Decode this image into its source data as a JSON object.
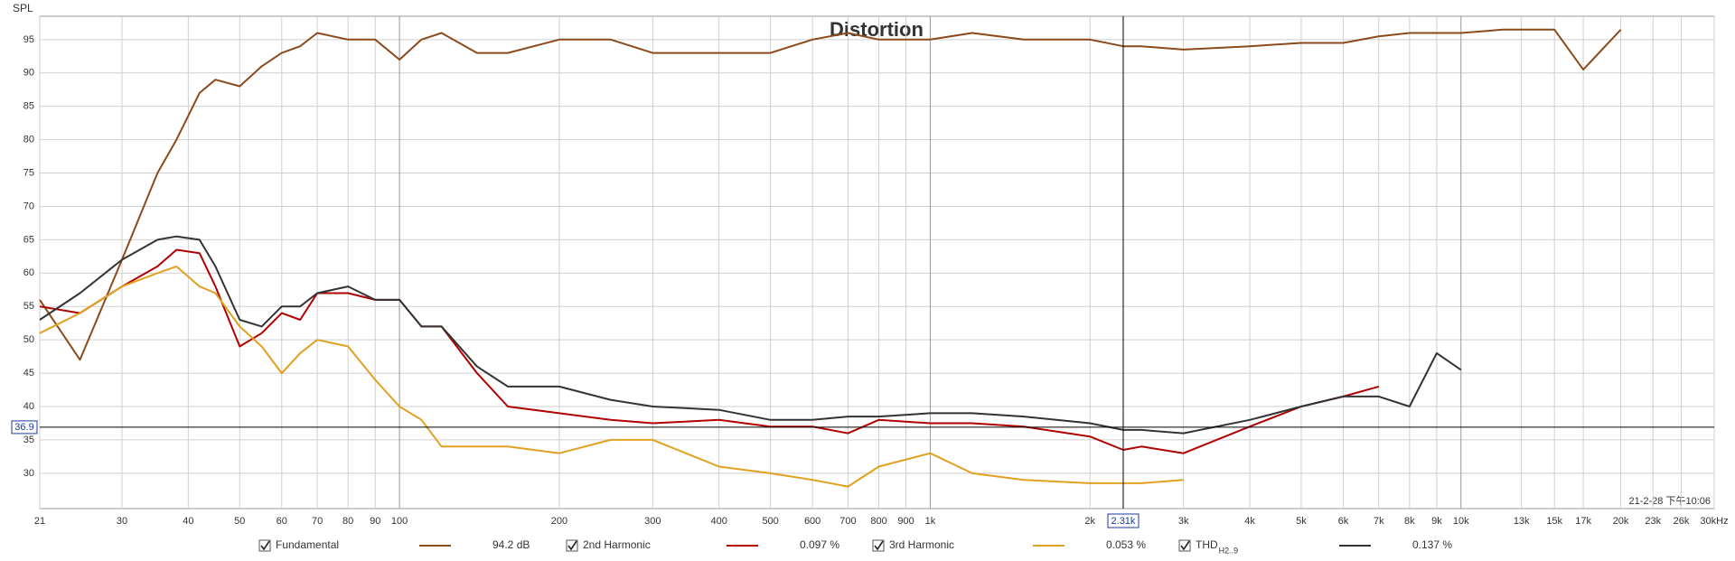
{
  "chart_data": {
    "type": "line",
    "title": "Distortion",
    "y_label": "SPL",
    "timestamp": "21-2-28 下午10:06",
    "xscale": "log",
    "grid": true,
    "xlim": [
      21,
      30000
    ],
    "ylim": [
      24.7,
      98.5
    ],
    "yticks": [
      30,
      35,
      40,
      45,
      50,
      55,
      60,
      65,
      70,
      75,
      80,
      85,
      90,
      95
    ],
    "xticks": [
      21,
      30,
      40,
      50,
      60,
      70,
      80,
      90,
      100,
      200,
      300,
      400,
      500,
      600,
      700,
      800,
      900,
      {
        "value": 1000,
        "label": "1k"
      },
      {
        "value": 2000,
        "label": "2k"
      },
      {
        "value": 3000,
        "label": "3k"
      },
      {
        "value": 4000,
        "label": "4k"
      },
      {
        "value": 5000,
        "label": "5k"
      },
      {
        "value": 6000,
        "label": "6k"
      },
      {
        "value": 7000,
        "label": "7k"
      },
      {
        "value": 8000,
        "label": "8k"
      },
      {
        "value": 9000,
        "label": "9k"
      },
      {
        "value": 10000,
        "label": "10k"
      },
      {
        "value": 13000,
        "label": "13k"
      },
      {
        "value": 15000,
        "label": "15k"
      },
      {
        "value": 17000,
        "label": "17k"
      },
      {
        "value": 20000,
        "label": "20k"
      },
      {
        "value": 23000,
        "label": "23k"
      },
      {
        "value": 26000,
        "label": "26k"
      },
      {
        "value": 30000,
        "label": "30kHz"
      }
    ],
    "cursor": {
      "x": {
        "value": 2310,
        "label": "2.31k"
      },
      "y": 36.9
    },
    "x": [
      21,
      25,
      30,
      35,
      38,
      42,
      45,
      50,
      55,
      60,
      65,
      70,
      80,
      90,
      100,
      110,
      120,
      140,
      160,
      200,
      250,
      300,
      400,
      500,
      600,
      700,
      800,
      1000,
      1200,
      1500,
      2000,
      2310,
      2500,
      3000,
      4000,
      5000,
      6000,
      7000,
      8000,
      9000,
      10000,
      12000,
      15000,
      17000,
      20000
    ],
    "series": [
      {
        "name": "Fundamental",
        "readout": "94.2 dB",
        "color": "#8b4a1c",
        "values": [
          56,
          47,
          62,
          75,
          80,
          87,
          89,
          88,
          91,
          93,
          94,
          96,
          95,
          95,
          92,
          95,
          96,
          93,
          93,
          95,
          95,
          93,
          93,
          93,
          95,
          96,
          95,
          95,
          96,
          95,
          95,
          94,
          94,
          93.5,
          94,
          94.5,
          94.5,
          95.5,
          96,
          96,
          96,
          96.5,
          96.5,
          90.5,
          96.5
        ]
      },
      {
        "name": "2nd Harmonic",
        "readout": "0.097 %",
        "color": "#b00000",
        "values": [
          55,
          54,
          58,
          61,
          63.5,
          63,
          58,
          49,
          51,
          54,
          53,
          57,
          57,
          56,
          56,
          52,
          52,
          45,
          40,
          39,
          38,
          37.5,
          38,
          37,
          37,
          36,
          38,
          37.5,
          37.5,
          37,
          35.5,
          33.5,
          34,
          33,
          37,
          40,
          41.5,
          43,
          null,
          null,
          null,
          null,
          null,
          null,
          null
        ]
      },
      {
        "name": "3rd Harmonic",
        "readout": "0.053 %",
        "color": "#e0a020",
        "values": [
          51,
          54,
          58,
          60,
          61,
          58,
          57,
          52,
          49,
          45,
          48,
          50,
          49,
          44,
          40,
          38,
          34,
          34,
          34,
          33,
          35,
          35,
          31,
          30,
          29,
          28,
          31,
          33,
          30,
          29,
          28.5,
          28.5,
          28.5,
          29,
          null,
          null,
          null,
          null,
          null,
          null,
          null,
          null,
          null,
          null,
          null
        ]
      },
      {
        "name": "THD",
        "name_sub": "H2..9",
        "readout": "0.137 %",
        "color": "#333333",
        "values": [
          53,
          57,
          62,
          65,
          65.5,
          65,
          61,
          53,
          52,
          55,
          55,
          57,
          58,
          56,
          56,
          52,
          52,
          46,
          43,
          43,
          41,
          40,
          39.5,
          38,
          38,
          38.5,
          38.5,
          39,
          39,
          38.5,
          37.5,
          36.5,
          36.5,
          36,
          38,
          40,
          41.5,
          41.5,
          40,
          48,
          45.5,
          null,
          null,
          null,
          null
        ]
      }
    ]
  }
}
